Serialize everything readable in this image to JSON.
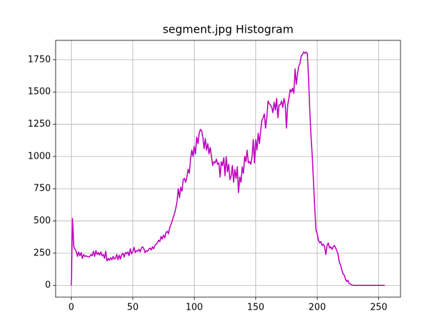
{
  "chart_data": {
    "type": "line",
    "title": "segment.jpg Histogram",
    "x": [
      0,
      1,
      2,
      3,
      4,
      5,
      6,
      7,
      8,
      9,
      10,
      11,
      12,
      13,
      14,
      15,
      16,
      17,
      18,
      19,
      20,
      21,
      22,
      23,
      24,
      25,
      26,
      27,
      28,
      29,
      30,
      31,
      32,
      33,
      34,
      35,
      36,
      37,
      38,
      39,
      40,
      41,
      42,
      43,
      44,
      45,
      46,
      47,
      48,
      49,
      50,
      51,
      52,
      53,
      54,
      55,
      56,
      57,
      58,
      59,
      60,
      61,
      62,
      63,
      64,
      65,
      66,
      67,
      68,
      69,
      70,
      71,
      72,
      73,
      74,
      75,
      76,
      77,
      78,
      79,
      80,
      81,
      82,
      83,
      84,
      85,
      86,
      87,
      88,
      89,
      90,
      91,
      92,
      93,
      94,
      95,
      96,
      97,
      98,
      99,
      100,
      101,
      102,
      103,
      104,
      105,
      106,
      107,
      108,
      109,
      110,
      111,
      112,
      113,
      114,
      115,
      116,
      117,
      118,
      119,
      120,
      121,
      122,
      123,
      124,
      125,
      126,
      127,
      128,
      129,
      130,
      131,
      132,
      133,
      134,
      135,
      136,
      137,
      138,
      139,
      140,
      141,
      142,
      143,
      144,
      145,
      146,
      147,
      148,
      149,
      150,
      151,
      152,
      153,
      154,
      155,
      156,
      157,
      158,
      159,
      160,
      161,
      162,
      163,
      164,
      165,
      166,
      167,
      168,
      169,
      170,
      171,
      172,
      173,
      174,
      175,
      176,
      177,
      178,
      179,
      180,
      181,
      182,
      183,
      184,
      185,
      186,
      187,
      188,
      189,
      190,
      191,
      192,
      193,
      194,
      195,
      196,
      197,
      198,
      199,
      200,
      201,
      202,
      203,
      204,
      205,
      206,
      207,
      208,
      209,
      210,
      211,
      212,
      213,
      214,
      215,
      216,
      217,
      218,
      219,
      220,
      221,
      222,
      223,
      224,
      225,
      226,
      227,
      228,
      229,
      230,
      231,
      232,
      233,
      234,
      235,
      236,
      237,
      238,
      239,
      240,
      241,
      242,
      243,
      244,
      245,
      246,
      247,
      248,
      249,
      250,
      251,
      252,
      253,
      254,
      255
    ],
    "series": [
      {
        "color": "#bf00bf",
        "values": [
          0,
          520,
          300,
          280,
          265,
          225,
          260,
          230,
          255,
          210,
          240,
          225,
          230,
          225,
          220,
          225,
          240,
          230,
          265,
          225,
          270,
          240,
          255,
          235,
          260,
          230,
          240,
          210,
          265,
          190,
          210,
          195,
          215,
          200,
          225,
          205,
          210,
          240,
          200,
          235,
          205,
          240,
          250,
          220,
          255,
          245,
          260,
          230,
          285,
          245,
          260,
          295,
          255,
          270,
          265,
          280,
          260,
          290,
          300,
          285,
          255,
          270,
          265,
          280,
          290,
          275,
          300,
          285,
          310,
          320,
          330,
          350,
          340,
          380,
          360,
          390,
          370,
          410,
          420,
          400,
          450,
          470,
          500,
          530,
          560,
          600,
          650,
          750,
          680,
          760,
          730,
          820,
          830,
          800,
          840,
          900,
          870,
          980,
          1050,
          1000,
          1080,
          1020,
          1150,
          1100,
          1180,
          1210,
          1200,
          1150,
          1060,
          1140,
          1050,
          1100,
          1020,
          1070,
          1000,
          930,
          960,
          950,
          980,
          940,
          950,
          840,
          960,
          930,
          990,
          850,
          1000,
          880,
          940,
          820,
          850,
          930,
          800,
          900,
          830,
          920,
          720,
          840,
          800,
          920,
          870,
          1000,
          960,
          1050,
          950,
          960,
          940,
          1000,
          1130,
          950,
          1130,
          1050,
          1180,
          1100,
          1200,
          1280,
          1300,
          1330,
          1220,
          1300,
          1430,
          1410,
          1400,
          1380,
          1340,
          1420,
          1360,
          1450,
          1300,
          1400,
          1400,
          1430,
          1380,
          1450,
          1400,
          1220,
          1400,
          1450,
          1520,
          1500,
          1530,
          1490,
          1680,
          1560,
          1640,
          1700,
          1720,
          1780,
          1790,
          1810,
          1800,
          1810,
          1800,
          1600,
          1350,
          1150,
          1000,
          800,
          600,
          430,
          400,
          350,
          330,
          340,
          310,
          320,
          300,
          240,
          310,
          330,
          290,
          300,
          280,
          300,
          310,
          290,
          270,
          240,
          180,
          160,
          120,
          90,
          80,
          50,
          30,
          40,
          15,
          10,
          5,
          2,
          0,
          0,
          0,
          0,
          0,
          0,
          0,
          0,
          0,
          0,
          0,
          0,
          0,
          0,
          0,
          0,
          0,
          0,
          0,
          0,
          0,
          0,
          0,
          0,
          0,
          0
        ]
      }
    ],
    "xlim": [
      -12.75,
      267.75
    ],
    "ylim": [
      -90.5,
      1900.5
    ],
    "xticks": [
      0,
      50,
      100,
      150,
      200,
      250
    ],
    "yticks": [
      0,
      250,
      500,
      750,
      1000,
      1250,
      1500,
      1750
    ],
    "grid": true
  }
}
